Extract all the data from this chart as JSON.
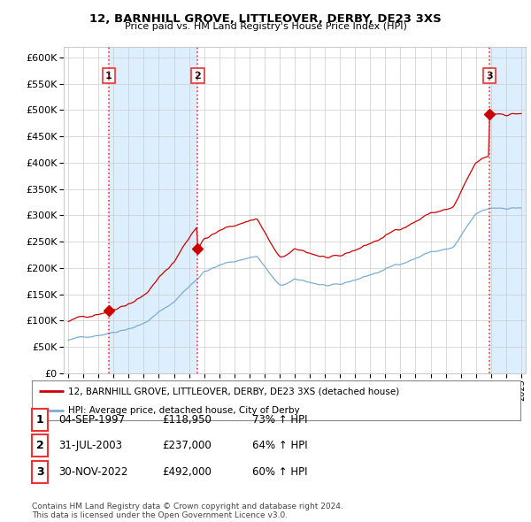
{
  "title1": "12, BARNHILL GROVE, LITTLEOVER, DERBY, DE23 3XS",
  "title2": "Price paid vs. HM Land Registry's House Price Index (HPI)",
  "ylim": [
    0,
    620000
  ],
  "yticks": [
    0,
    50000,
    100000,
    150000,
    200000,
    250000,
    300000,
    350000,
    400000,
    450000,
    500000,
    550000,
    600000
  ],
  "sale_dates_numeric": [
    1997.674,
    2003.581,
    2022.915
  ],
  "sale_prices": [
    118950,
    237000,
    492000
  ],
  "sale_labels": [
    "1",
    "2",
    "3"
  ],
  "legend_house": "12, BARNHILL GROVE, LITTLEOVER, DERBY, DE23 3XS (detached house)",
  "legend_hpi": "HPI: Average price, detached house, City of Derby",
  "table_rows": [
    [
      "1",
      "04-SEP-1997",
      "£118,950",
      "73% ↑ HPI"
    ],
    [
      "2",
      "31-JUL-2003",
      "£237,000",
      "64% ↑ HPI"
    ],
    [
      "3",
      "30-NOV-2022",
      "£492,000",
      "60% ↑ HPI"
    ]
  ],
  "footer": "Contains HM Land Registry data © Crown copyright and database right 2024.\nThis data is licensed under the Open Government Licence v3.0.",
  "house_color": "#cc0000",
  "hpi_color": "#7aadd4",
  "vline_color": "#ee3333",
  "shade_color": "#ddeeff",
  "background_color": "#ffffff",
  "grid_color": "#cccccc",
  "xlim_left": 1994.7,
  "xlim_right": 2025.3
}
